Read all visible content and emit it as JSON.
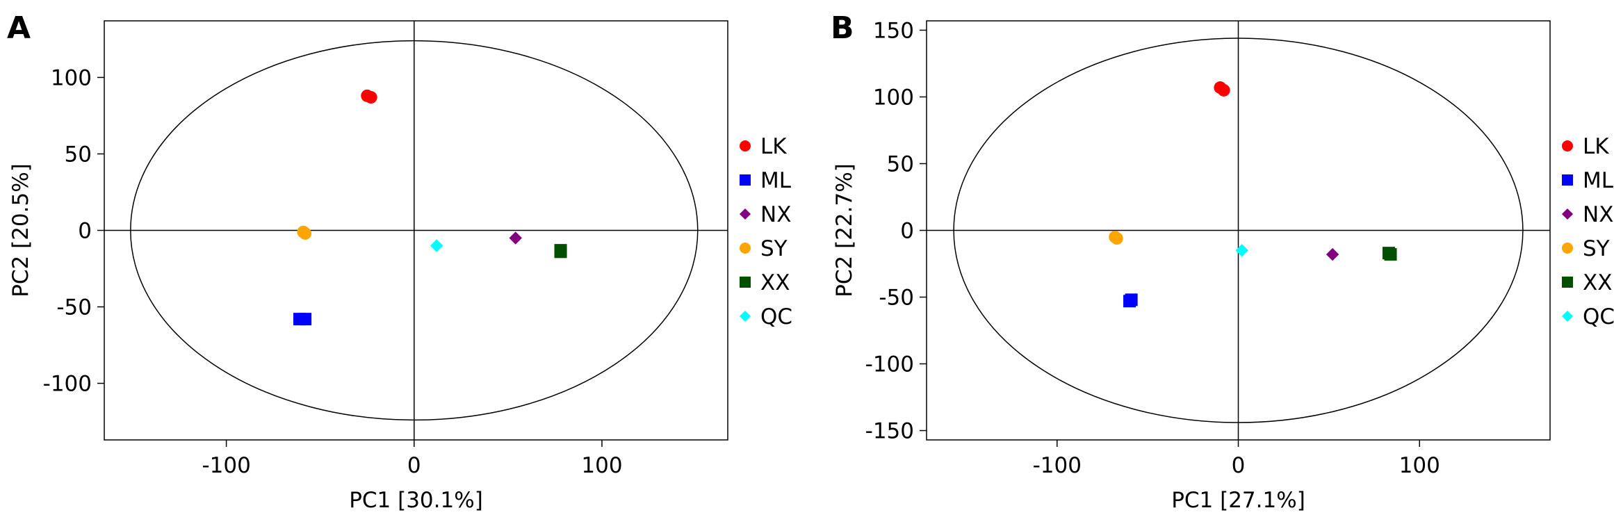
{
  "chart_data": [
    {
      "type": "scatter",
      "panel_label": "A",
      "xlabel": "PC1 [30.1%]",
      "ylabel": "PC2 [20.5%]",
      "xlim": [
        -165,
        167
      ],
      "ylim": [
        -137,
        137
      ],
      "xticks": [
        -100,
        0,
        100
      ],
      "yticks": [
        -100,
        -50,
        0,
        50,
        100
      ],
      "ellipse": {
        "rx": 151,
        "ry": 124
      },
      "legend_position": "right",
      "series": [
        {
          "name": "LK",
          "marker": "circle",
          "color": "#ff0000",
          "points": [
            [
              -25,
              88
            ],
            [
              -23,
              87
            ]
          ]
        },
        {
          "name": "ML",
          "marker": "square",
          "color": "#0000ff",
          "points": [
            [
              -61,
              -58
            ],
            [
              -58,
              -58
            ]
          ]
        },
        {
          "name": "NX",
          "marker": "diamond",
          "color": "#800080",
          "points": [
            [
              54,
              -5
            ]
          ]
        },
        {
          "name": "SY",
          "marker": "circle",
          "color": "#ffa500",
          "points": [
            [
              -59,
              -1
            ],
            [
              -58,
              -2
            ]
          ]
        },
        {
          "name": "XX",
          "marker": "square",
          "color": "#005000",
          "points": [
            [
              78,
              -13
            ],
            [
              78,
              -14
            ]
          ]
        },
        {
          "name": "QC",
          "marker": "diamond",
          "color": "#00ffff",
          "points": [
            [
              12,
              -10
            ]
          ]
        }
      ]
    },
    {
      "type": "scatter",
      "panel_label": "B",
      "xlabel": "PC1 [27.1%]",
      "ylabel": "PC2 [22.7%]",
      "xlim": [
        -172,
        172
      ],
      "ylim": [
        -157,
        157
      ],
      "xticks": [
        -100,
        0,
        100
      ],
      "yticks": [
        -150,
        -100,
        -50,
        0,
        50,
        100,
        150
      ],
      "ellipse": {
        "rx": 157,
        "ry": 144
      },
      "legend_position": "right",
      "series": [
        {
          "name": "LK",
          "marker": "circle",
          "color": "#ff0000",
          "points": [
            [
              -10,
              107
            ],
            [
              -8,
              105
            ]
          ]
        },
        {
          "name": "ML",
          "marker": "square",
          "color": "#0000ff",
          "points": [
            [
              -60,
              -53
            ],
            [
              -59,
              -52
            ]
          ]
        },
        {
          "name": "NX",
          "marker": "diamond",
          "color": "#800080",
          "points": [
            [
              52,
              -18
            ]
          ]
        },
        {
          "name": "SY",
          "marker": "circle",
          "color": "#ffa500",
          "points": [
            [
              -68,
              -5
            ],
            [
              -67,
              -6
            ]
          ]
        },
        {
          "name": "XX",
          "marker": "square",
          "color": "#005000",
          "points": [
            [
              83,
              -17
            ],
            [
              84,
              -18
            ]
          ]
        },
        {
          "name": "QC",
          "marker": "diamond",
          "color": "#00ffff",
          "points": [
            [
              2,
              -15
            ]
          ]
        }
      ]
    }
  ]
}
